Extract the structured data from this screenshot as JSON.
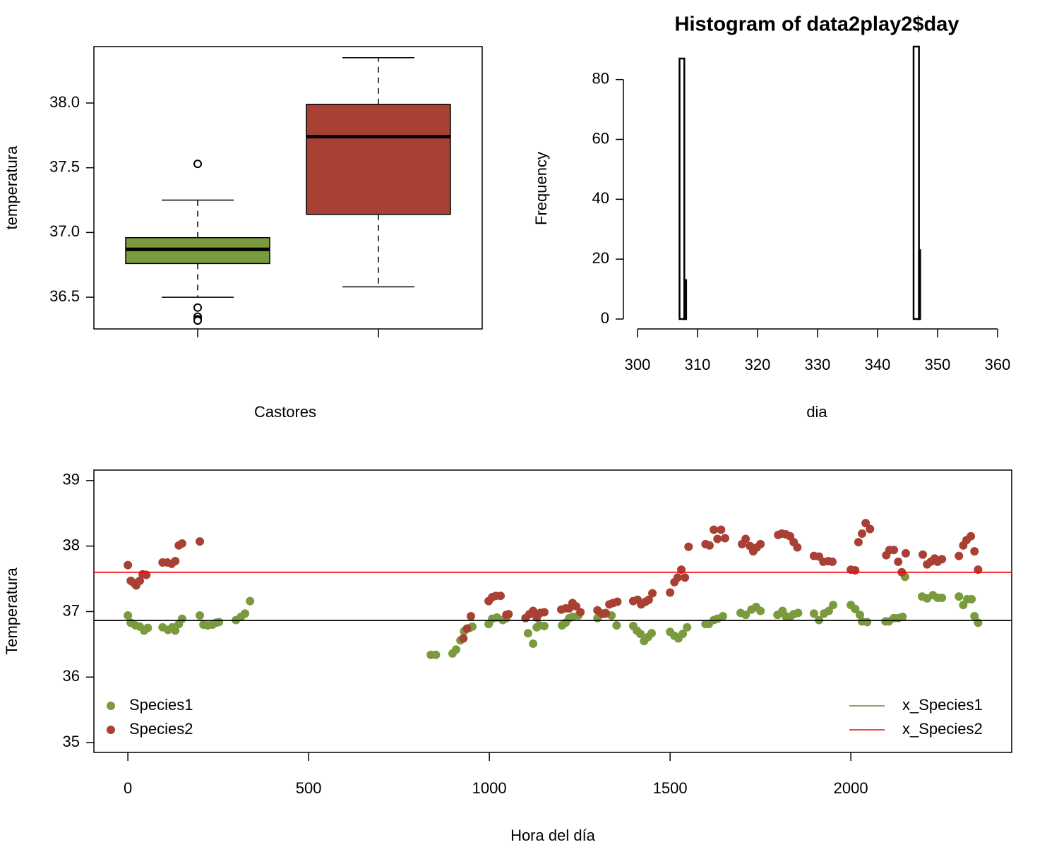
{
  "chart_data": [
    {
      "type": "box",
      "xlabel": "Castores",
      "ylabel": "temperatura",
      "categories": [
        null,
        null
      ],
      "ylim": [
        36.255,
        38.436
      ],
      "yticks": [
        36.5,
        {
          "value": 37.0,
          "label": "37.0"
        },
        37.5,
        {
          "value": 38.0,
          "label": "38.0"
        }
      ],
      "boxes": [
        {
          "color": "#7a9a3e",
          "whislo": 36.5,
          "q1": 36.76,
          "med": 36.87,
          "q3": 36.96,
          "whishi": 37.25,
          "outliers": [
            37.53,
            36.42,
            36.35,
            36.33,
            36.32
          ]
        },
        {
          "color": "#a84034",
          "whislo": 36.58,
          "q1": 37.14,
          "med": 37.74,
          "q3": 37.99,
          "whishi": 38.35,
          "outliers": []
        }
      ]
    },
    {
      "type": "histogram",
      "title": "Histogram of data2play2$day",
      "xlabel": "dia",
      "ylabel": "Frequency",
      "bins": [
        307,
        307.8,
        308.1,
        346,
        346.9,
        347.1
      ],
      "counts": [
        87,
        13,
        0,
        91,
        23
      ],
      "xlim": [
        300,
        360
      ],
      "xticks": [
        300,
        310,
        320,
        330,
        340,
        350,
        360
      ],
      "ylim": [
        0,
        91
      ],
      "yticks": [
        0,
        20,
        40,
        60,
        80
      ]
    },
    {
      "type": "scatter",
      "xlabel": "Hora del día",
      "ylabel": "Temperatura",
      "xlim": [
        -94,
        2445
      ],
      "xticks": [
        0,
        500,
        1000,
        1500,
        2000
      ],
      "ylim": [
        34.85,
        39.16
      ],
      "yticks": [
        35,
        36,
        37,
        38,
        39
      ],
      "legend": "bottomleft",
      "lines_legend": "bottomright",
      "series": [
        {
          "name": "Species1",
          "color": "#7a9a3e",
          "x": [
            0,
            8,
            21,
            33,
            45,
            55,
            96,
            111,
            123,
            131,
            141,
            150,
            199,
            209,
            221,
            234,
            244,
            252,
            299,
            313,
            324,
            338,
            838,
            852,
            898,
            908,
            920,
            930,
            945,
            953,
            998,
            1008,
            1021,
            1037,
            1047,
            1107,
            1121,
            1131,
            1139,
            1152,
            1201,
            1211,
            1221,
            1230,
            1246,
            1299,
            1311,
            1322,
            1338,
            1352,
            1398,
            1408,
            1418,
            1428,
            1439,
            1449,
            1500,
            1512,
            1523,
            1535,
            1547,
            1598,
            1607,
            1621,
            1631,
            1646,
            1695,
            1709,
            1725,
            1738,
            1750,
            1797,
            1811,
            1820,
            1832,
            1842,
            1854,
            1898,
            1912,
            1926,
            1939,
            1951,
            2000,
            2012,
            2025,
            2031,
            2045,
            2096,
            2105,
            2119,
            2131,
            2143,
            2150,
            2197,
            2211,
            2227,
            2240,
            2252,
            2299,
            2311,
            2322,
            2334,
            2342,
            2352
          ],
          "values": [
            36.94,
            36.83,
            36.79,
            36.77,
            36.71,
            36.75,
            36.76,
            36.72,
            36.76,
            36.71,
            36.81,
            36.89,
            36.94,
            36.8,
            36.79,
            36.8,
            36.83,
            36.84,
            36.87,
            36.92,
            36.97,
            37.16,
            36.34,
            36.34,
            36.36,
            36.42,
            36.56,
            36.7,
            36.75,
            36.77,
            36.81,
            36.89,
            36.91,
            36.87,
            36.9,
            36.67,
            36.51,
            36.76,
            36.79,
            36.78,
            36.79,
            36.83,
            36.9,
            36.92,
            36.94,
            36.9,
            36.96,
            36.98,
            36.94,
            36.79,
            36.78,
            36.71,
            36.66,
            36.55,
            36.61,
            36.67,
            36.69,
            36.63,
            36.59,
            36.66,
            36.76,
            36.81,
            36.81,
            36.87,
            36.89,
            36.93,
            36.98,
            36.95,
            37.03,
            37.07,
            37.01,
            36.95,
            37.01,
            36.93,
            36.92,
            36.96,
            36.98,
            36.97,
            36.87,
            36.97,
            37.01,
            37.1,
            37.1,
            37.04,
            36.95,
            36.85,
            36.84,
            36.85,
            36.85,
            36.9,
            36.9,
            36.92,
            37.53,
            37.23,
            37.2,
            37.25,
            37.21,
            37.21,
            37.23,
            37.1,
            37.19,
            37.19,
            36.93,
            36.83
          ]
        },
        {
          "name": "Species2",
          "color": "#a84034",
          "x": [
            0,
            8,
            16,
            23,
            33,
            41,
            51,
            96,
            109,
            121,
            131,
            141,
            150,
            199,
            928,
            938,
            949,
            998,
            1008,
            1018,
            1031,
            1047,
            1053,
            1100,
            1111,
            1121,
            1131,
            1141,
            1152,
            1199,
            1211,
            1221,
            1230,
            1240,
            1252,
            1299,
            1311,
            1322,
            1332,
            1342,
            1354,
            1398,
            1410,
            1420,
            1432,
            1441,
            1451,
            1500,
            1512,
            1521,
            1531,
            1541,
            1551,
            1598,
            1609,
            1621,
            1631,
            1641,
            1652,
            1699,
            1709,
            1721,
            1730,
            1740,
            1750,
            1799,
            1809,
            1820,
            1832,
            1842,
            1852,
            1898,
            1912,
            1924,
            1938,
            1949,
            2000,
            2012,
            2021,
            2031,
            2041,
            2053,
            2098,
            2107,
            2119,
            2131,
            2141,
            2152,
            2199,
            2211,
            2221,
            2232,
            2240,
            2252,
            2299,
            2311,
            2320,
            2332,
            2342,
            2352
          ],
          "values": [
            37.71,
            37.47,
            37.44,
            37.4,
            37.47,
            37.57,
            37.56,
            37.75,
            37.75,
            37.73,
            37.77,
            38.01,
            38.04,
            38.07,
            36.59,
            36.74,
            36.93,
            37.16,
            37.22,
            37.24,
            37.24,
            36.95,
            36.96,
            36.9,
            36.96,
            37.01,
            36.91,
            36.98,
            36.99,
            37.03,
            37.05,
            37.05,
            37.13,
            37.08,
            36.99,
            37.02,
            36.97,
            36.97,
            37.11,
            37.13,
            37.15,
            37.16,
            37.18,
            37.11,
            37.15,
            37.18,
            37.28,
            37.29,
            37.45,
            37.52,
            37.64,
            37.52,
            37.99,
            38.03,
            38.01,
            38.25,
            38.11,
            38.25,
            38.12,
            38.03,
            38.11,
            38.0,
            37.92,
            37.98,
            38.03,
            38.17,
            38.19,
            38.18,
            38.15,
            38.06,
            37.98,
            37.85,
            37.84,
            37.76,
            37.77,
            37.76,
            37.64,
            37.63,
            38.06,
            38.19,
            38.35,
            38.26,
            37.86,
            37.94,
            37.94,
            37.76,
            37.6,
            37.89,
            37.87,
            37.72,
            37.76,
            37.81,
            37.76,
            37.8,
            37.85,
            38.01,
            38.09,
            38.15,
            37.92,
            37.64
          ]
        }
      ],
      "lines": [
        {
          "name": "x_Species1",
          "color": "#7a9a3e",
          "line_color": "#000000",
          "value": 36.865
        },
        {
          "name": "x_Species2",
          "color": "#e83030",
          "line_color": "#ff0000",
          "value": 37.6
        }
      ]
    }
  ]
}
